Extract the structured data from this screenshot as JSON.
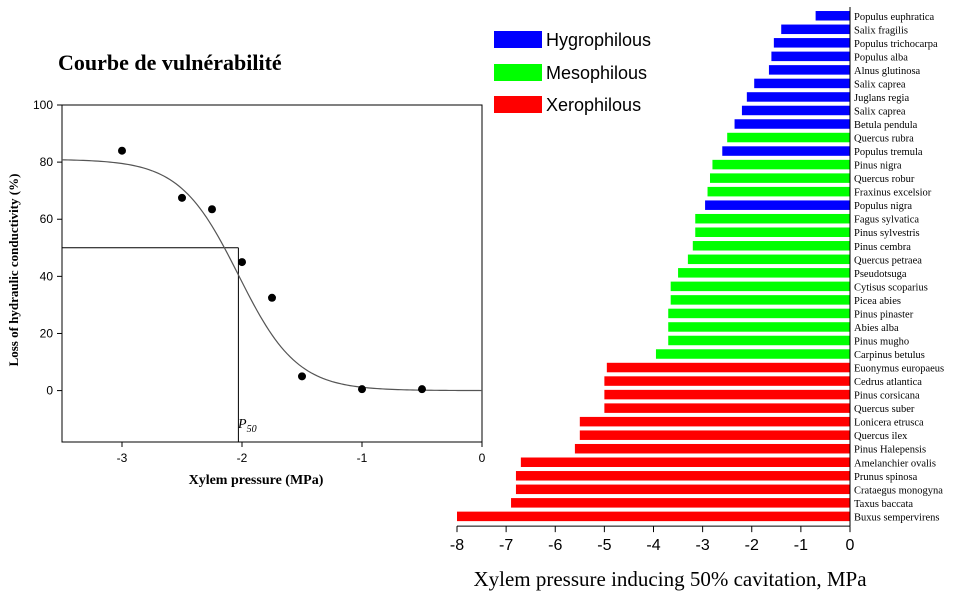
{
  "left_chart": {
    "title": "Courbe de vulnérabilité",
    "xlabel": "Xylem pressure (MPa)",
    "ylabel": "Loss of hydraulic conductivity (%)",
    "p50_label": "P",
    "p50_sub": "50"
  },
  "right_chart": {
    "xlabel": "Xylem pressure inducing 50% cavitation, MPa",
    "legend": [
      {
        "label": "Hygrophilous",
        "color": "#0000ff"
      },
      {
        "label": "Mesophilous",
        "color": "#00ff00"
      },
      {
        "label": "Xerophilous",
        "color": "#ff0000"
      }
    ]
  },
  "chart_data": [
    {
      "type": "scatter",
      "title": "Courbe de vulnérabilité",
      "xlabel": "Xylem pressure (MPa)",
      "ylabel": "Loss of hydraulic conductivity (%)",
      "xlim": [
        -3.5,
        0
      ],
      "ylim": [
        -18,
        100
      ],
      "xticks": [
        -3,
        -2,
        -1,
        0
      ],
      "yticks": [
        0,
        20,
        40,
        60,
        80,
        100
      ],
      "points": [
        {
          "x": -3.0,
          "y": 84
        },
        {
          "x": -2.5,
          "y": 67.5
        },
        {
          "x": -2.25,
          "y": 63.5
        },
        {
          "x": -2.0,
          "y": 45
        },
        {
          "x": -1.75,
          "y": 32.5
        },
        {
          "x": -1.5,
          "y": 5
        },
        {
          "x": -1.0,
          "y": 0.5
        },
        {
          "x": -0.5,
          "y": 0.5
        }
      ],
      "fit": {
        "type": "sigmoid",
        "max": 81,
        "p50": -2.03,
        "slope": 4.1
      },
      "p50": {
        "x": -2.03,
        "y": 50
      }
    },
    {
      "type": "bar",
      "orientation": "horizontal",
      "xlabel": "Xylem pressure inducing 50% cavitation, MPa",
      "xlim": [
        -8,
        0
      ],
      "xticks": [
        -8,
        -7,
        -6,
        -5,
        -4,
        -3,
        -2,
        -1,
        0
      ],
      "groups": {
        "Hygrophilous": "#0000ff",
        "Mesophilous": "#00ff00",
        "Xerophilous": "#ff0000"
      },
      "bars": [
        {
          "label": "Populus euphratica",
          "value": -0.7,
          "group": "Hygrophilous"
        },
        {
          "label": "Salix fragilis",
          "value": -1.4,
          "group": "Hygrophilous"
        },
        {
          "label": "Populus trichocarpa",
          "value": -1.55,
          "group": "Hygrophilous"
        },
        {
          "label": "Populus alba",
          "value": -1.6,
          "group": "Hygrophilous"
        },
        {
          "label": "Alnus glutinosa",
          "value": -1.65,
          "group": "Hygrophilous"
        },
        {
          "label": "Salix caprea",
          "value": -1.95,
          "group": "Hygrophilous"
        },
        {
          "label": "Juglans regia",
          "value": -2.1,
          "group": "Hygrophilous"
        },
        {
          "label": "Salix caprea",
          "value": -2.2,
          "group": "Hygrophilous"
        },
        {
          "label": "Betula pendula",
          "value": -2.35,
          "group": "Hygrophilous"
        },
        {
          "label": "Quercus rubra",
          "value": -2.5,
          "group": "Mesophilous"
        },
        {
          "label": "Populus tremula",
          "value": -2.6,
          "group": "Hygrophilous"
        },
        {
          "label": "Pinus nigra",
          "value": -2.8,
          "group": "Mesophilous"
        },
        {
          "label": "Quercus robur",
          "value": -2.85,
          "group": "Mesophilous"
        },
        {
          "label": "Fraxinus excelsior",
          "value": -2.9,
          "group": "Mesophilous"
        },
        {
          "label": "Populus nigra",
          "value": -2.95,
          "group": "Hygrophilous"
        },
        {
          "label": "Fagus sylvatica",
          "value": -3.15,
          "group": "Mesophilous"
        },
        {
          "label": "Pinus sylvestris",
          "value": -3.15,
          "group": "Mesophilous"
        },
        {
          "label": "Pinus cembra",
          "value": -3.2,
          "group": "Mesophilous"
        },
        {
          "label": "Quercus petraea",
          "value": -3.3,
          "group": "Mesophilous"
        },
        {
          "label": "Pseudotsuga",
          "value": -3.5,
          "group": "Mesophilous"
        },
        {
          "label": "Cytisus scoparius",
          "value": -3.65,
          "group": "Mesophilous"
        },
        {
          "label": "Picea abies",
          "value": -3.65,
          "group": "Mesophilous"
        },
        {
          "label": "Pinus pinaster",
          "value": -3.7,
          "group": "Mesophilous"
        },
        {
          "label": "Abies alba",
          "value": -3.7,
          "group": "Mesophilous"
        },
        {
          "label": "Pinus mugho",
          "value": -3.7,
          "group": "Mesophilous"
        },
        {
          "label": "Carpinus betulus",
          "value": -3.95,
          "group": "Mesophilous"
        },
        {
          "label": "Euonymus europaeus",
          "value": -4.95,
          "group": "Xerophilous"
        },
        {
          "label": "Cedrus atlantica",
          "value": -5.0,
          "group": "Xerophilous"
        },
        {
          "label": "Pinus corsicana",
          "value": -5.0,
          "group": "Xerophilous"
        },
        {
          "label": "Quercus suber",
          "value": -5.0,
          "group": "Xerophilous"
        },
        {
          "label": "Lonicera etrusca",
          "value": -5.5,
          "group": "Xerophilous"
        },
        {
          "label": "Quercus ilex",
          "value": -5.5,
          "group": "Xerophilous"
        },
        {
          "label": "Pinus Halepensis",
          "value": -5.6,
          "group": "Xerophilous"
        },
        {
          "label": "Amelanchier ovalis",
          "value": -6.7,
          "group": "Xerophilous"
        },
        {
          "label": "Prunus spinosa",
          "value": -6.8,
          "group": "Xerophilous"
        },
        {
          "label": "Crataegus monogyna",
          "value": -6.8,
          "group": "Xerophilous"
        },
        {
          "label": "Taxus baccata",
          "value": -6.9,
          "group": "Xerophilous"
        },
        {
          "label": "Buxus sempervirens",
          "value": -8.0,
          "group": "Xerophilous"
        }
      ]
    }
  ]
}
